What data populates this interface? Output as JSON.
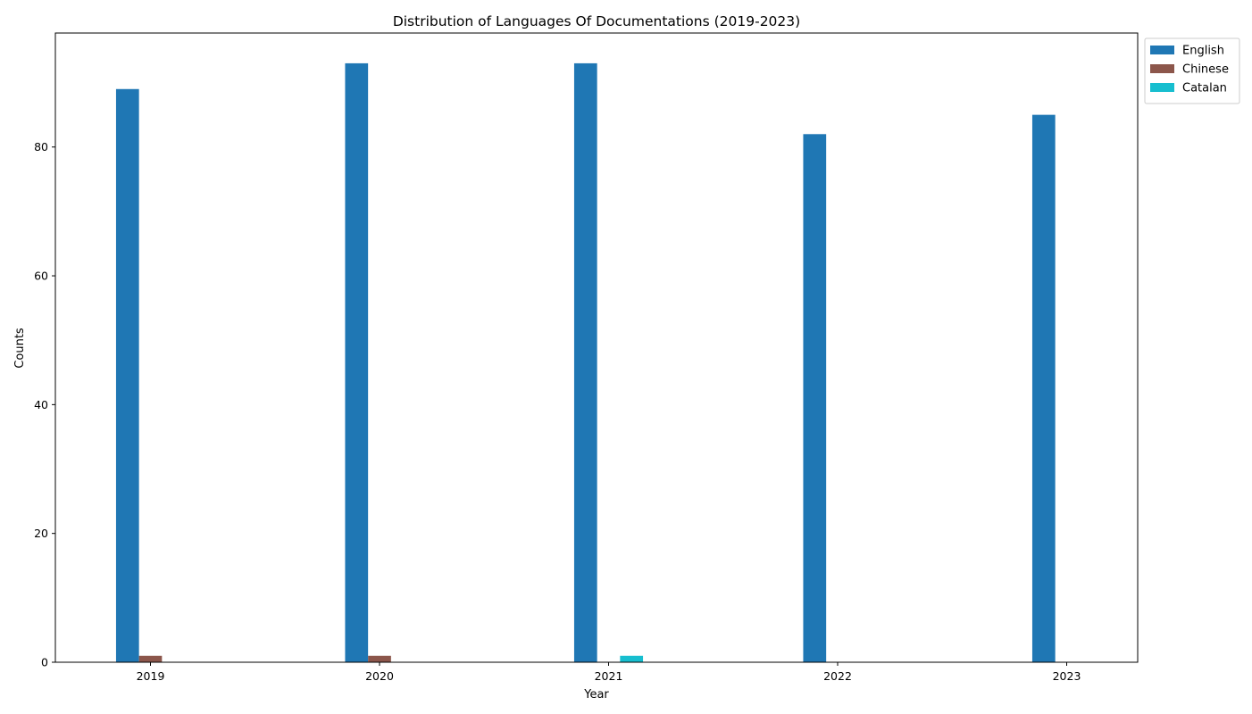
{
  "chart_data": {
    "type": "bar",
    "title": "Distribution of Languages Of Documentations (2019-2023)",
    "xlabel": "Year",
    "ylabel": "Counts",
    "categories": [
      "2019",
      "2020",
      "2021",
      "2022",
      "2023"
    ],
    "series": [
      {
        "name": "English",
        "color": "#1f77b4",
        "values": [
          89,
          93,
          93,
          82,
          85
        ]
      },
      {
        "name": "Chinese",
        "color": "#8c564b",
        "values": [
          1,
          1,
          0,
          0,
          0
        ]
      },
      {
        "name": "Catalan",
        "color": "#17becf",
        "values": [
          0,
          0,
          1,
          0,
          0
        ]
      }
    ],
    "ylim": [
      0,
      97.7
    ],
    "yticks": [
      0,
      20,
      40,
      60,
      80
    ],
    "grid": false,
    "legend_position": "outside top-right"
  }
}
